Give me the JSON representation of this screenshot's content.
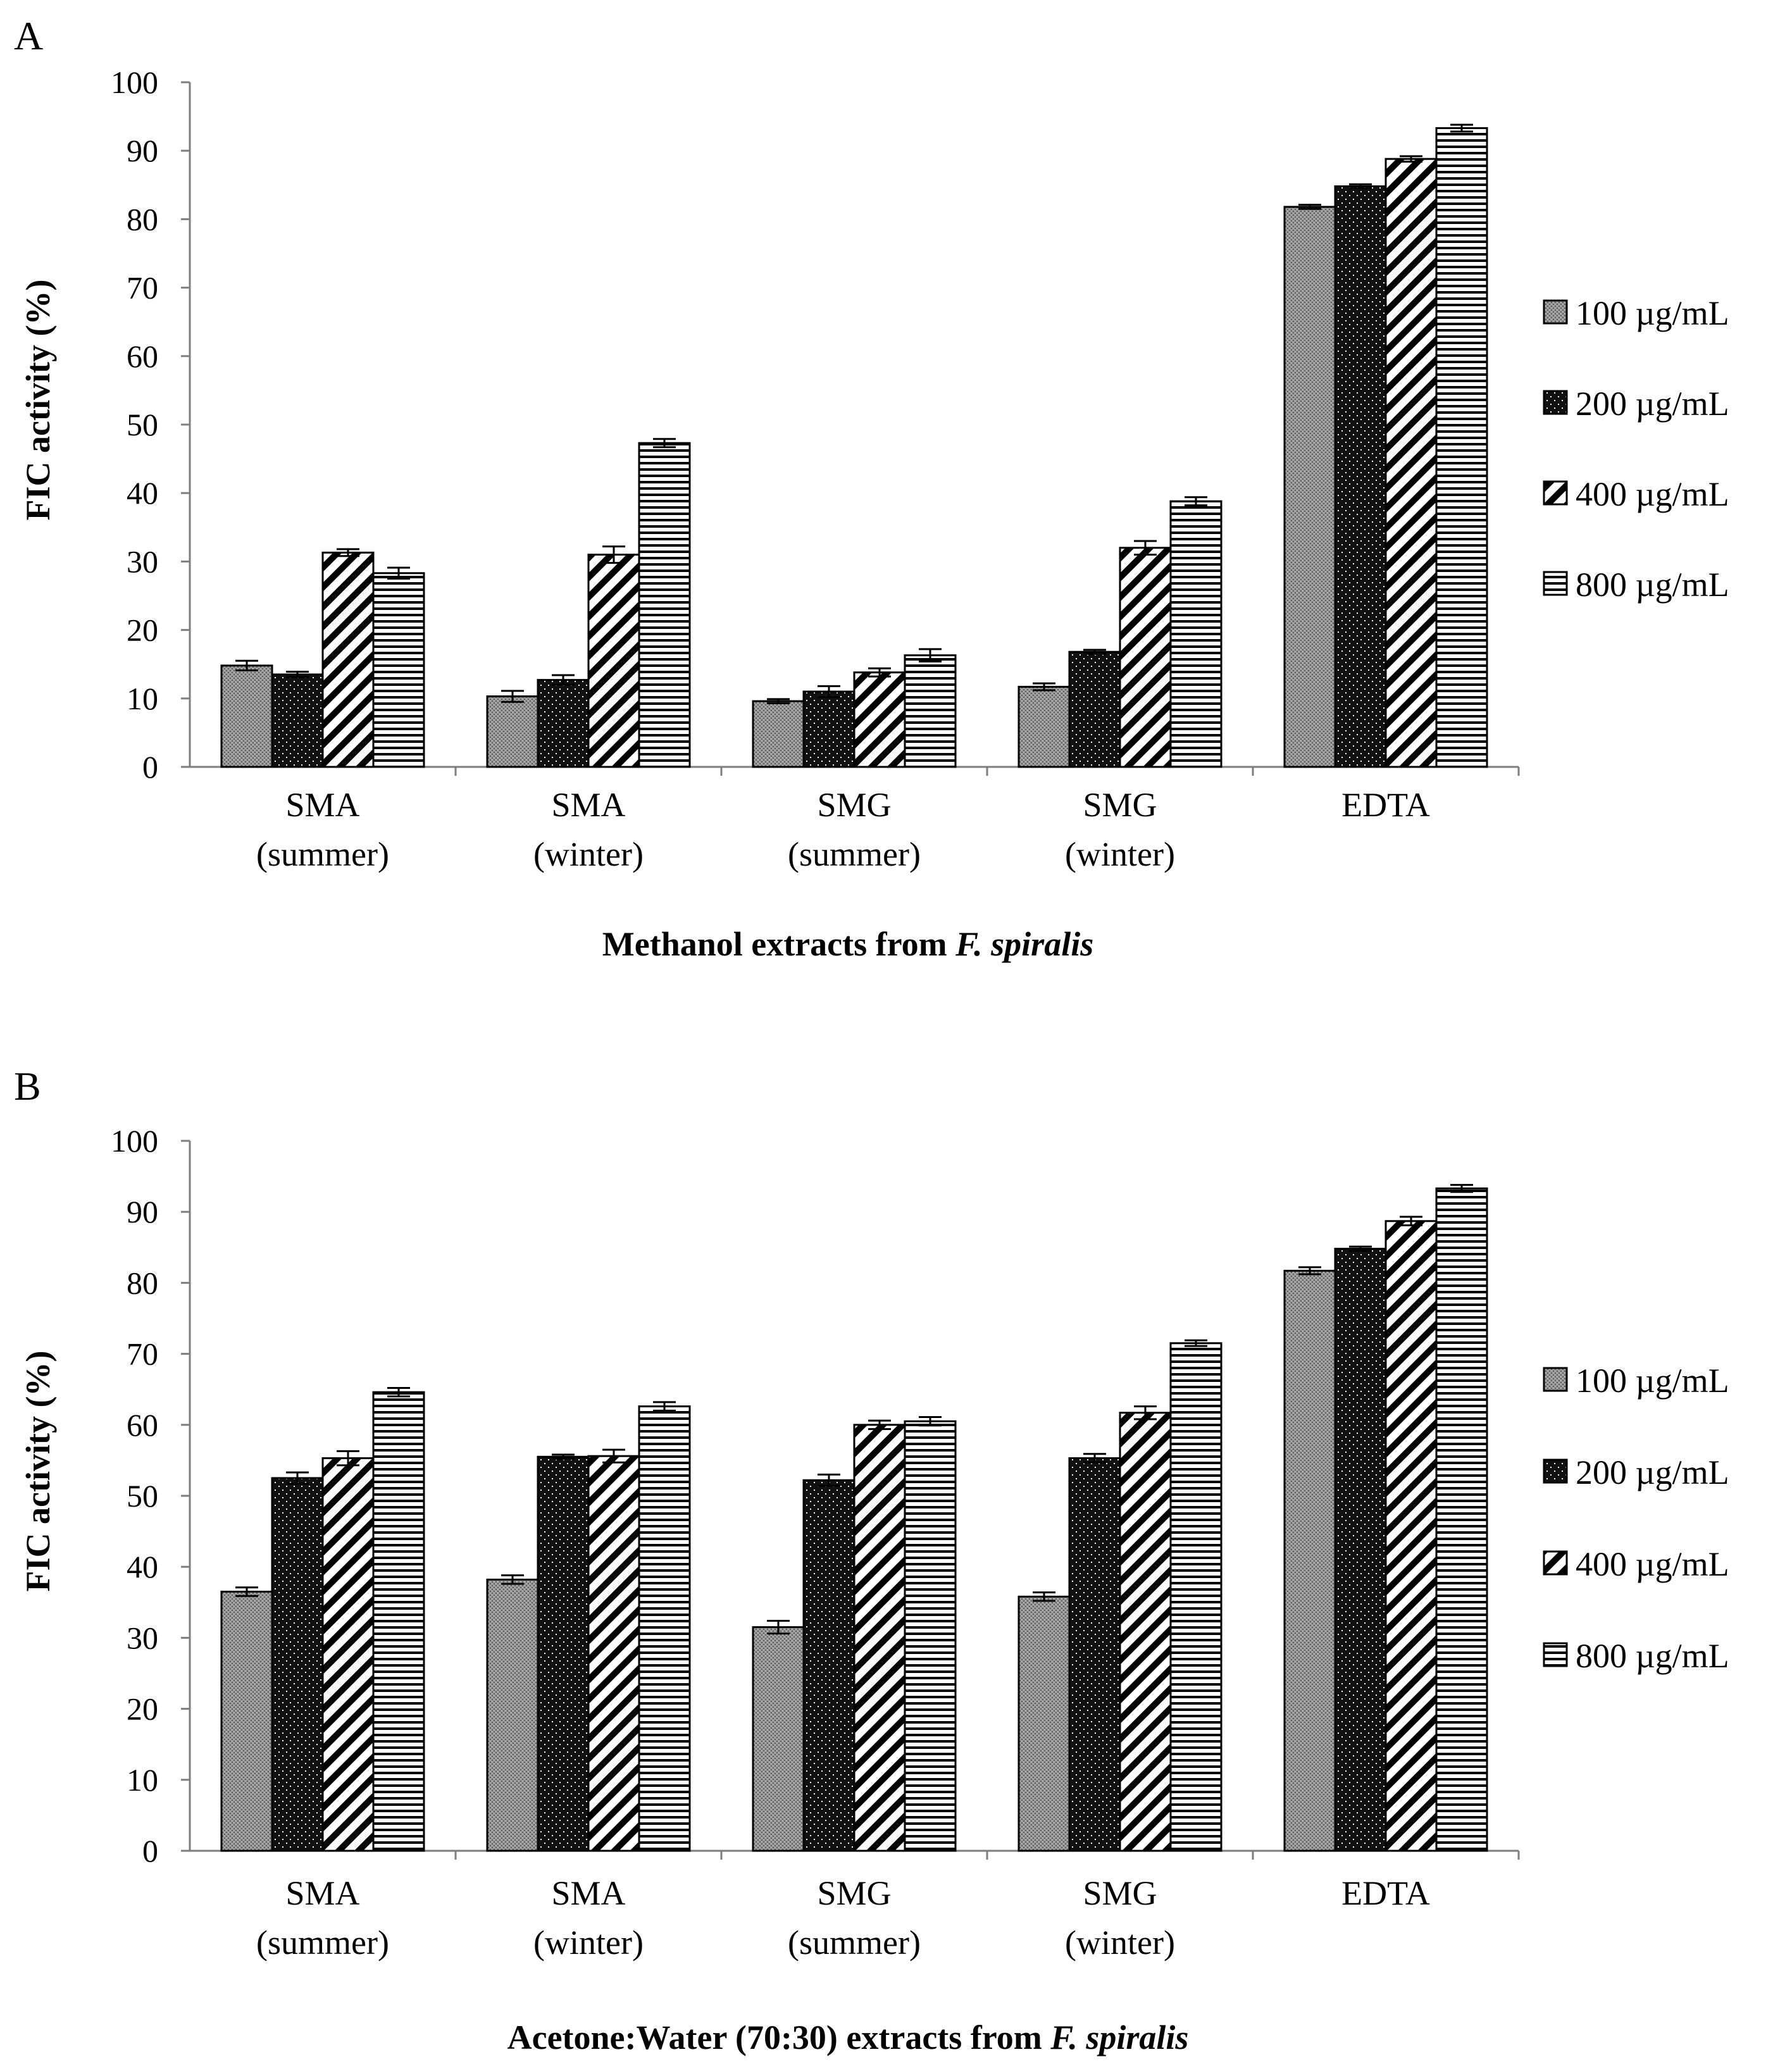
{
  "chart_data": [
    {
      "type": "bar",
      "panel": "A",
      "ylabel": "FIC activity (%)",
      "xlabel": "Methanol extracts from",
      "xlabel_italic": "F. spiralis",
      "ylim": [
        0,
        100
      ],
      "yticks": [
        0,
        10,
        20,
        30,
        40,
        50,
        60,
        70,
        80,
        90,
        100
      ],
      "categories": [
        [
          "SMA",
          "(summer)"
        ],
        [
          "SMA",
          "(winter)"
        ],
        [
          "SMG",
          "(summer)"
        ],
        [
          "SMG",
          "(winter)"
        ],
        [
          "EDTA",
          ""
        ]
      ],
      "series": [
        {
          "name": "100 µg/mL",
          "values": [
            14.8,
            10.3,
            9.6,
            11.7,
            81.8
          ],
          "errors": [
            0.7,
            0.8,
            0.3,
            0.5,
            0.3
          ]
        },
        {
          "name": "200  µg/mL",
          "values": [
            13.5,
            12.7,
            11.0,
            16.8,
            84.8
          ],
          "errors": [
            0.4,
            0.7,
            0.8,
            0.3,
            0.3
          ]
        },
        {
          "name": "400 µg/mL",
          "values": [
            31.3,
            31.0,
            13.8,
            32.0,
            88.8
          ],
          "errors": [
            0.5,
            1.2,
            0.6,
            1.0,
            0.4
          ]
        },
        {
          "name": "800 µg/mL",
          "values": [
            28.3,
            47.3,
            16.3,
            38.8,
            93.3
          ],
          "errors": [
            0.8,
            0.6,
            0.9,
            0.6,
            0.5
          ]
        }
      ]
    },
    {
      "type": "bar",
      "panel": "B",
      "ylabel": "FIC activity (%)",
      "xlabel": "Acetone:Water (70:30) extracts from",
      "xlabel_italic": "F. spiralis",
      "ylim": [
        0,
        100
      ],
      "yticks": [
        0,
        10,
        20,
        30,
        40,
        50,
        60,
        70,
        80,
        90,
        100
      ],
      "categories": [
        [
          "SMA",
          "(summer)"
        ],
        [
          "SMA",
          "(winter)"
        ],
        [
          "SMG",
          "(summer)"
        ],
        [
          "SMG",
          "(winter)"
        ],
        [
          "EDTA",
          ""
        ]
      ],
      "series": [
        {
          "name": "100 µg/mL",
          "values": [
            36.5,
            38.2,
            31.5,
            35.8,
            81.7
          ],
          "errors": [
            0.6,
            0.6,
            0.9,
            0.6,
            0.5
          ]
        },
        {
          "name": "200 µg/mL",
          "values": [
            52.5,
            55.5,
            52.2,
            55.3,
            84.8
          ],
          "errors": [
            0.8,
            0.3,
            0.8,
            0.6,
            0.3
          ]
        },
        {
          "name": "400 µg/mL",
          "values": [
            55.3,
            55.6,
            60.0,
            61.7,
            88.7
          ],
          "errors": [
            1.0,
            0.9,
            0.6,
            0.9,
            0.6
          ]
        },
        {
          "name": "800 µg/mL",
          "values": [
            64.6,
            62.6,
            60.5,
            71.5,
            93.3
          ],
          "errors": [
            0.6,
            0.6,
            0.6,
            0.4,
            0.5
          ]
        }
      ]
    }
  ],
  "colors": {
    "axis": "#7f7f7f",
    "outline": "#000000",
    "fill_100": "#8c8c8c",
    "fill_200": "#111111"
  }
}
